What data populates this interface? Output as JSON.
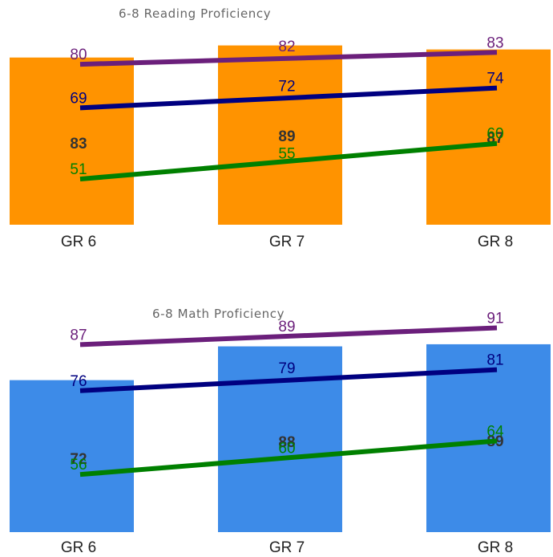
{
  "chart_data": [
    {
      "type": "bar",
      "title": "6-8 Reading Proficiency",
      "categories": [
        "GR 6",
        "GR 7",
        "GR 8"
      ],
      "bar_color": "#FF9300",
      "values": [
        83,
        89,
        87
      ],
      "series": [
        {
          "color": "#6B1F7B",
          "values": [
            80,
            82,
            83
          ]
        },
        {
          "color": "#000080",
          "values": [
            69,
            72,
            74
          ]
        },
        {
          "color": "#008000",
          "values": [
            51,
            55,
            60
          ]
        }
      ]
    },
    {
      "type": "bar",
      "title": "6-8 Math Proficiency",
      "categories": [
        "GR 6",
        "GR 7",
        "GR 8"
      ],
      "bar_color": "#3D8BE8",
      "values": [
        72,
        88,
        89
      ],
      "series": [
        {
          "color": "#6B1F7B",
          "values": [
            87,
            89,
            91
          ]
        },
        {
          "color": "#000080",
          "values": [
            76,
            79,
            81
          ]
        },
        {
          "color": "#008000",
          "values": [
            56,
            60,
            64
          ]
        }
      ]
    }
  ]
}
